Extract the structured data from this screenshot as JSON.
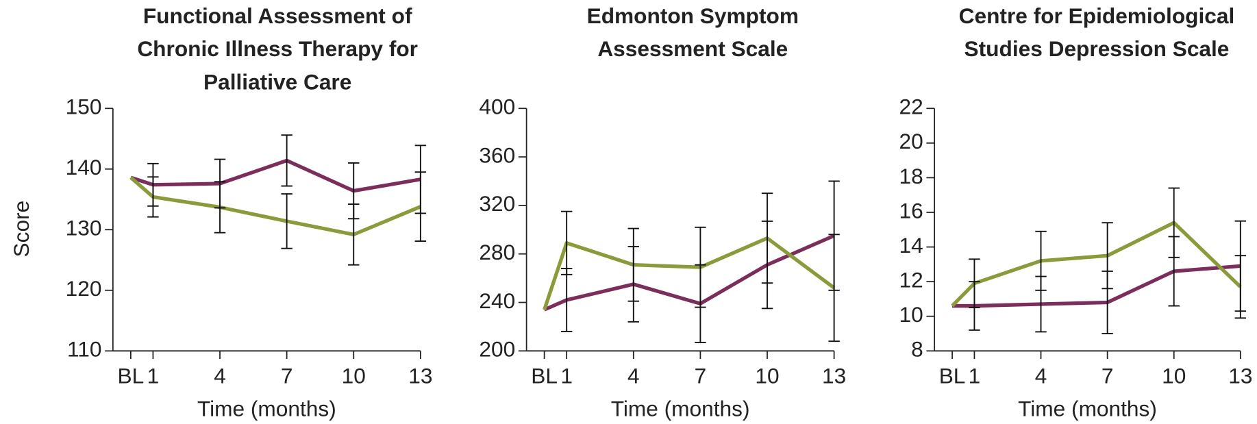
{
  "chart_data": [
    {
      "type": "line",
      "title": [
        "Functional Assessment of",
        "Chronic Illness Therapy for",
        "Palliative Care"
      ],
      "ylabel": "Score",
      "xlabel": "Time (months)",
      "x": [
        0,
        1,
        4,
        7,
        10,
        13
      ],
      "xlim": [
        -0.8,
        13
      ],
      "xticks": [
        {
          "value": 0,
          "label": "BL"
        },
        1,
        4,
        7,
        10,
        13
      ],
      "ylim": [
        110,
        150
      ],
      "yticks": [
        110,
        120,
        130,
        140,
        150
      ],
      "series": [
        {
          "color": "#7b2d5c",
          "values": [
            138.6,
            137.4,
            137.6,
            141.4,
            136.4,
            138.3
          ],
          "errors": [
            null,
            3.5,
            4.0,
            4.2,
            4.6,
            5.6
          ]
        },
        {
          "color": "#8c9a3c",
          "values": [
            138.6,
            135.4,
            133.7,
            131.4,
            129.2,
            133.8
          ],
          "errors": [
            null,
            3.3,
            4.2,
            4.5,
            5.0,
            5.7
          ]
        }
      ]
    },
    {
      "type": "line",
      "title": [
        "Edmonton Symptom",
        "Assessment Scale"
      ],
      "xlabel": "Time (months)",
      "x": [
        0,
        1,
        4,
        7,
        10,
        13
      ],
      "xlim": [
        -0.8,
        13
      ],
      "xticks": [
        {
          "value": 0,
          "label": "BL"
        },
        1,
        4,
        7,
        10,
        13
      ],
      "ylim": [
        200,
        400
      ],
      "yticks": [
        200,
        240,
        280,
        320,
        360,
        400
      ],
      "series": [
        {
          "color": "#7b2d5c",
          "values": [
            234,
            242,
            255,
            239,
            271,
            295
          ],
          "errors": [
            null,
            26,
            31,
            32,
            36,
            45
          ]
        },
        {
          "color": "#8c9a3c",
          "values": [
            234,
            289,
            271,
            269,
            293,
            252
          ],
          "errors": [
            null,
            26,
            30,
            33,
            37,
            44
          ]
        }
      ]
    },
    {
      "type": "line",
      "title": [
        "Centre for Epidemiological",
        "Studies Depression Scale"
      ],
      "xlabel": "Time (months)",
      "x": [
        0,
        1,
        4,
        7,
        10,
        13
      ],
      "xlim": [
        -0.8,
        13
      ],
      "xticks": [
        {
          "value": 0,
          "label": "BL"
        },
        1,
        4,
        7,
        10,
        13
      ],
      "ylim": [
        8,
        22
      ],
      "yticks": [
        8,
        10,
        12,
        14,
        16,
        18,
        20,
        22
      ],
      "series": [
        {
          "color": "#7b2d5c",
          "values": [
            10.6,
            10.6,
            10.7,
            10.8,
            12.6,
            12.9
          ],
          "errors": [
            null,
            1.4,
            1.6,
            1.8,
            2.0,
            2.6
          ]
        },
        {
          "color": "#8c9a3c",
          "values": [
            10.6,
            11.9,
            13.2,
            13.5,
            15.4,
            11.7
          ],
          "errors": [
            null,
            1.4,
            1.7,
            1.9,
            2.0,
            1.8
          ]
        }
      ]
    }
  ]
}
